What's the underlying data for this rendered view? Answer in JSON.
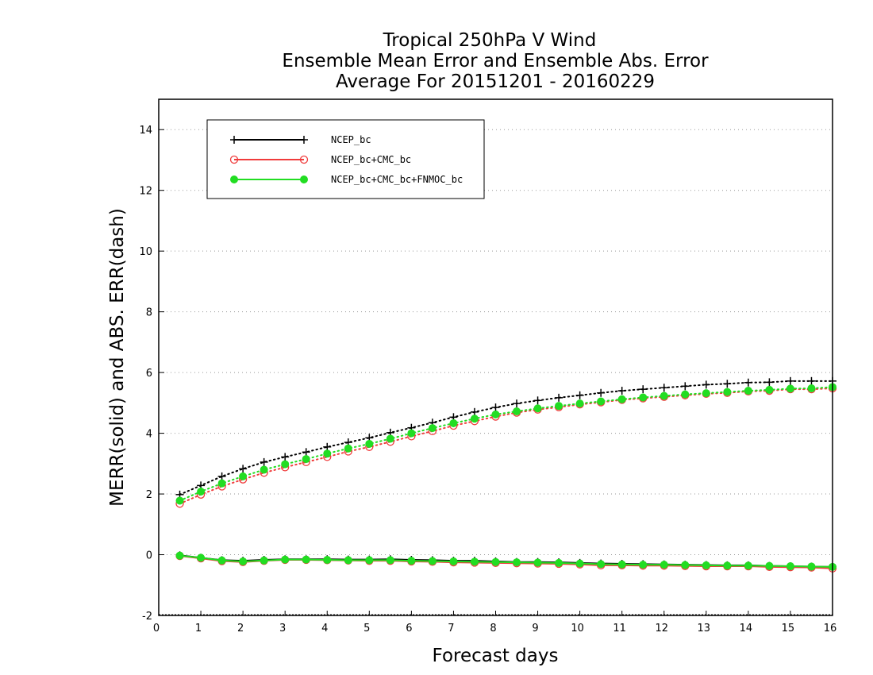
{
  "chart_data": {
    "type": "line",
    "title_lines": [
      "Tropical 250hPa V Wind",
      "Ensemble Mean Error and Ensemble Abs. Error",
      "Average For 20151201 - 20160229"
    ],
    "xlabel": "Forecast days",
    "ylabel": "MERR(solid) and ABS. ERR(dash)",
    "xlim": [
      0,
      16
    ],
    "ylim": [
      -2,
      15
    ],
    "x_ticks": [
      "0",
      "1",
      "2",
      "3",
      "4",
      "5",
      "6",
      "7",
      "8",
      "9",
      "10",
      "11",
      "12",
      "13",
      "14",
      "15",
      "16"
    ],
    "y_ticks": [
      "-2",
      "0",
      "2",
      "4",
      "6",
      "8",
      "10",
      "12",
      "14"
    ],
    "grid": "horizontal dotted",
    "legend_position": "top-left",
    "x": [
      0.5,
      1,
      1.5,
      2,
      2.5,
      3,
      3.5,
      4,
      4.5,
      5,
      5.5,
      6,
      6.5,
      7,
      7.5,
      8,
      8.5,
      9,
      9.5,
      10,
      10.5,
      11,
      11.5,
      12,
      12.5,
      13,
      13.5,
      14,
      14.5,
      15,
      15.5,
      16
    ],
    "series": [
      {
        "name": "NCEP_bc",
        "color": "#000000",
        "marker": "plus",
        "abs_err": [
          1.98,
          2.28,
          2.58,
          2.83,
          3.05,
          3.22,
          3.38,
          3.55,
          3.7,
          3.85,
          4.02,
          4.18,
          4.35,
          4.53,
          4.7,
          4.85,
          4.98,
          5.08,
          5.17,
          5.25,
          5.33,
          5.4,
          5.45,
          5.5,
          5.55,
          5.6,
          5.63,
          5.67,
          5.68,
          5.72,
          5.72,
          5.72
        ],
        "mean_err": [
          -0.02,
          -0.1,
          -0.18,
          -0.2,
          -0.17,
          -0.15,
          -0.15,
          -0.15,
          -0.16,
          -0.16,
          -0.15,
          -0.17,
          -0.18,
          -0.2,
          -0.2,
          -0.22,
          -0.24,
          -0.24,
          -0.25,
          -0.27,
          -0.29,
          -0.3,
          -0.31,
          -0.32,
          -0.33,
          -0.34,
          -0.35,
          -0.35,
          -0.37,
          -0.38,
          -0.39,
          -0.4
        ]
      },
      {
        "name": "NCEP_bc+CMC_bc",
        "color": "#f03c3c",
        "marker": "open-circle",
        "abs_err": [
          1.68,
          1.98,
          2.25,
          2.48,
          2.7,
          2.88,
          3.05,
          3.22,
          3.4,
          3.55,
          3.72,
          3.9,
          4.07,
          4.25,
          4.4,
          4.55,
          4.68,
          4.78,
          4.86,
          4.95,
          5.02,
          5.1,
          5.15,
          5.2,
          5.25,
          5.3,
          5.33,
          5.38,
          5.4,
          5.45,
          5.45,
          5.48
        ],
        "mean_err": [
          -0.04,
          -0.12,
          -0.21,
          -0.24,
          -0.2,
          -0.17,
          -0.17,
          -0.18,
          -0.19,
          -0.2,
          -0.2,
          -0.22,
          -0.23,
          -0.25,
          -0.26,
          -0.27,
          -0.28,
          -0.29,
          -0.3,
          -0.32,
          -0.35,
          -0.35,
          -0.36,
          -0.36,
          -0.37,
          -0.38,
          -0.38,
          -0.38,
          -0.4,
          -0.41,
          -0.42,
          -0.45
        ]
      },
      {
        "name": "NCEP_bc+CMC_bc+FNMOC_bc",
        "color": "#22dd22",
        "marker": "filled-circle",
        "abs_err": [
          1.78,
          2.08,
          2.35,
          2.58,
          2.8,
          2.98,
          3.15,
          3.33,
          3.5,
          3.65,
          3.82,
          4.0,
          4.17,
          4.33,
          4.48,
          4.62,
          4.72,
          4.82,
          4.9,
          4.98,
          5.05,
          5.12,
          5.18,
          5.23,
          5.28,
          5.32,
          5.36,
          5.4,
          5.43,
          5.47,
          5.48,
          5.52
        ],
        "mean_err": [
          -0.03,
          -0.1,
          -0.19,
          -0.22,
          -0.19,
          -0.16,
          -0.16,
          -0.17,
          -0.18,
          -0.18,
          -0.18,
          -0.2,
          -0.21,
          -0.22,
          -0.23,
          -0.24,
          -0.25,
          -0.26,
          -0.27,
          -0.29,
          -0.31,
          -0.32,
          -0.33,
          -0.33,
          -0.34,
          -0.35,
          -0.36,
          -0.36,
          -0.37,
          -0.38,
          -0.39,
          -0.4
        ]
      }
    ]
  }
}
